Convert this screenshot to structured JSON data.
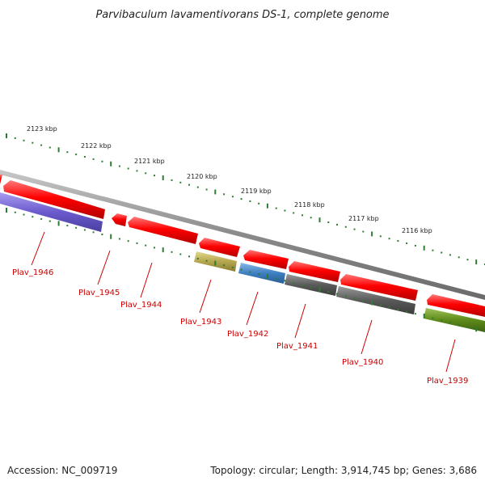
{
  "title": "Parvibaculum lavamentivorans DS-1, complete genome",
  "accession_text": "Accession: NC_009719",
  "summary_text": "Topology: circular; Length: 3,914,745 bp; Genes: 3,686",
  "colors": {
    "forward_gene": "#ff0000",
    "label": "#cc0000",
    "tick": "#2e7d32",
    "backbone": "#8a8a8a"
  },
  "scale_labels": [
    "2123 kbp",
    "2122 kbp",
    "2121 kbp",
    "2120 kbp",
    "2119 kbp",
    "2118 kbp",
    "2117 kbp",
    "2116 kbp"
  ],
  "genes": [
    {
      "id": "fwd-a"
    },
    {
      "id": "fwd-b"
    },
    {
      "id": "fwd-c"
    },
    {
      "id": "fwd-d"
    },
    {
      "id": "fwd-e"
    },
    {
      "id": "fwd-f"
    },
    {
      "id": "fwd-g"
    },
    {
      "id": "fwd-h"
    },
    {
      "id": "fwd-i"
    },
    {
      "id": "Plav_1946",
      "label": "Plav_1946",
      "color": "#6a5acd"
    },
    {
      "id": "Plav_1943",
      "label": "Plav_1943",
      "color": "#b5a74e"
    },
    {
      "id": "Plav_1942",
      "label": "Plav_1942",
      "color": "#3d7fc1"
    },
    {
      "id": "Plav_1941",
      "label": "Plav_1941",
      "color": "#5a5a5a"
    },
    {
      "id": "Plav_1940",
      "label": "Plav_1940",
      "color": "#5a5a5a"
    },
    {
      "id": "Plav_1939",
      "label": "Plav_1939",
      "color": "#5e8a1a"
    },
    {
      "id": "Plav_1945",
      "label": "Plav_1945"
    },
    {
      "id": "Plav_1944",
      "label": "Plav_1944"
    }
  ]
}
